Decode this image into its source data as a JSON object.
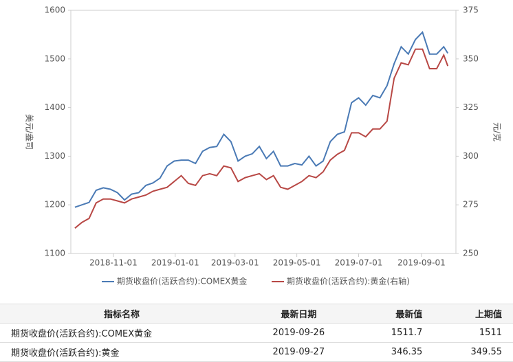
{
  "chart_data": {
    "type": "line",
    "x": [
      "2018-09-24",
      "2018-10-01",
      "2018-10-08",
      "2018-10-15",
      "2018-10-22",
      "2018-10-29",
      "2018-11-05",
      "2018-11-12",
      "2018-11-19",
      "2018-11-26",
      "2018-12-03",
      "2018-12-10",
      "2018-12-17",
      "2018-12-24",
      "2018-12-31",
      "2019-01-07",
      "2019-01-14",
      "2019-01-21",
      "2019-01-28",
      "2019-02-04",
      "2019-02-11",
      "2019-02-18",
      "2019-02-25",
      "2019-03-04",
      "2019-03-11",
      "2019-03-18",
      "2019-03-25",
      "2019-04-01",
      "2019-04-08",
      "2019-04-15",
      "2019-04-22",
      "2019-04-29",
      "2019-05-06",
      "2019-05-13",
      "2019-05-20",
      "2019-05-27",
      "2019-06-03",
      "2019-06-10",
      "2019-06-17",
      "2019-06-24",
      "2019-07-01",
      "2019-07-08",
      "2019-07-15",
      "2019-07-22",
      "2019-07-29",
      "2019-08-05",
      "2019-08-12",
      "2019-08-19",
      "2019-08-26",
      "2019-09-02",
      "2019-09-09",
      "2019-09-16",
      "2019-09-23",
      "2019-09-27"
    ],
    "series": [
      {
        "name": "期货收盘价(活跃合约):COMEX黄金",
        "color": "#4a7ab5",
        "values": [
          1195,
          1200,
          1205,
          1230,
          1235,
          1232,
          1225,
          1210,
          1222,
          1225,
          1240,
          1245,
          1255,
          1280,
          1290,
          1292,
          1292,
          1285,
          1310,
          1318,
          1320,
          1345,
          1330,
          1290,
          1300,
          1305,
          1320,
          1295,
          1310,
          1280,
          1280,
          1285,
          1282,
          1300,
          1280,
          1290,
          1330,
          1345,
          1350,
          1410,
          1420,
          1405,
          1425,
          1420,
          1445,
          1490,
          1525,
          1510,
          1540,
          1555,
          1510,
          1510,
          1525,
          1511.7
        ]
      },
      {
        "name": "期货收盘价(活跃合约):黄金(右轴)",
        "color": "#b84845",
        "axis": "y2",
        "values": [
          263,
          266,
          268,
          276,
          278,
          278,
          277,
          276,
          278,
          279,
          280,
          282,
          283,
          284,
          287,
          290,
          286,
          285,
          290,
          291,
          290,
          295,
          294,
          287,
          289,
          290,
          291,
          288,
          290,
          284,
          283,
          285,
          287,
          290,
          289,
          292,
          298,
          301,
          303,
          312,
          312,
          310,
          314,
          314,
          318,
          340,
          348,
          347,
          355,
          355,
          345,
          345,
          352,
          346.35
        ]
      }
    ],
    "xlim": [
      "2018-09-20",
      "2019-10-05"
    ],
    "xticks": [
      "2018-11-01",
      "2019-01-01",
      "2019-03-01",
      "2019-05-01",
      "2019-07-01",
      "2019-09-01"
    ],
    "ylim": [
      1100,
      1600
    ],
    "yticks": [
      1100,
      1200,
      1300,
      1400,
      1500,
      1600
    ],
    "y2lim": [
      250,
      375
    ],
    "y2ticks": [
      250,
      275,
      300,
      325,
      350,
      375
    ],
    "y_label": "美元/盎司",
    "y2_label": "元/克",
    "grid": false
  },
  "table": {
    "columns": [
      "指标名称",
      "最新日期",
      "最新值",
      "上期值"
    ],
    "rows": [
      [
        "期货收盘价(活跃合约):COMEX黄金",
        "2019-09-26",
        1511.7,
        1511
      ],
      [
        "期货收盘价(活跃合约):黄金",
        "2019-09-27",
        346.35,
        349.55
      ]
    ]
  }
}
